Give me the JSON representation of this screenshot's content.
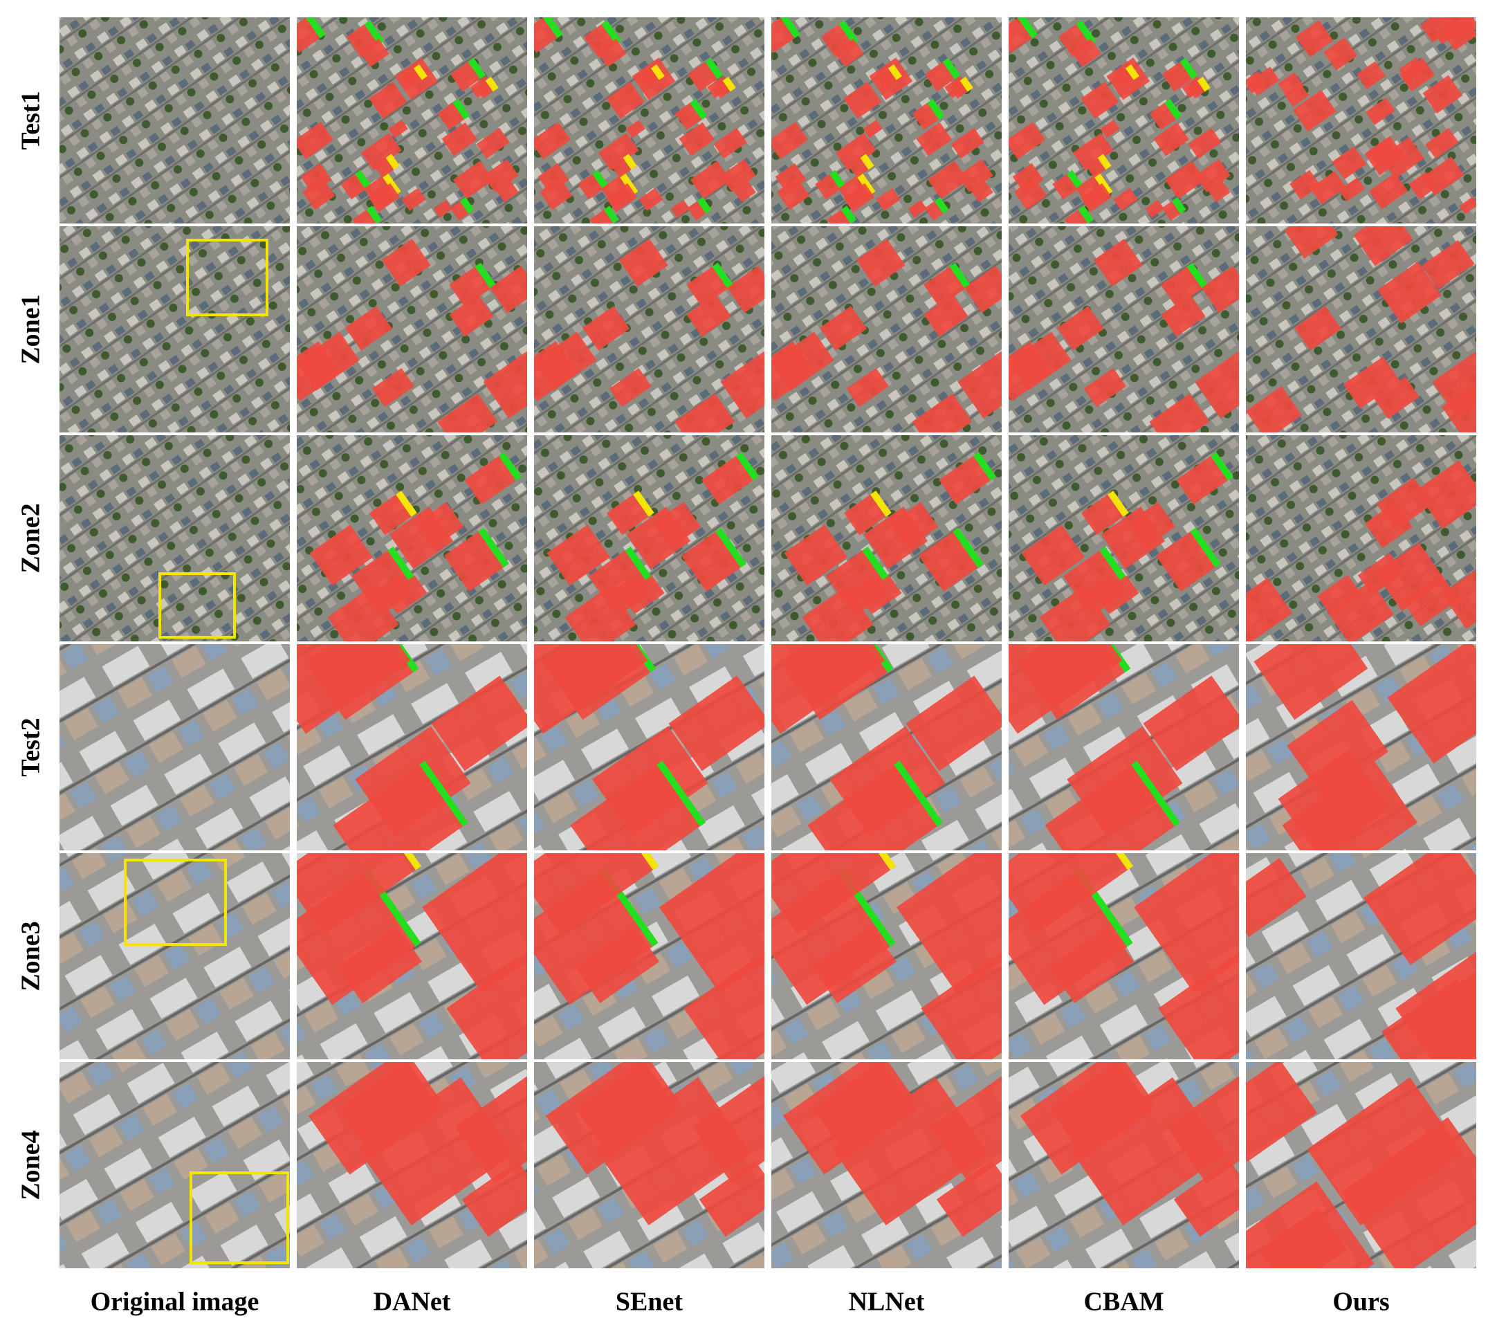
{
  "rows": [
    "Test1",
    "Zone1",
    "Zone2",
    "Test2",
    "Zone3",
    "Zone4"
  ],
  "columns": [
    "Original image",
    "DANet",
    "SEnet",
    "NLNet",
    "CBAM",
    "Ours"
  ]
}
